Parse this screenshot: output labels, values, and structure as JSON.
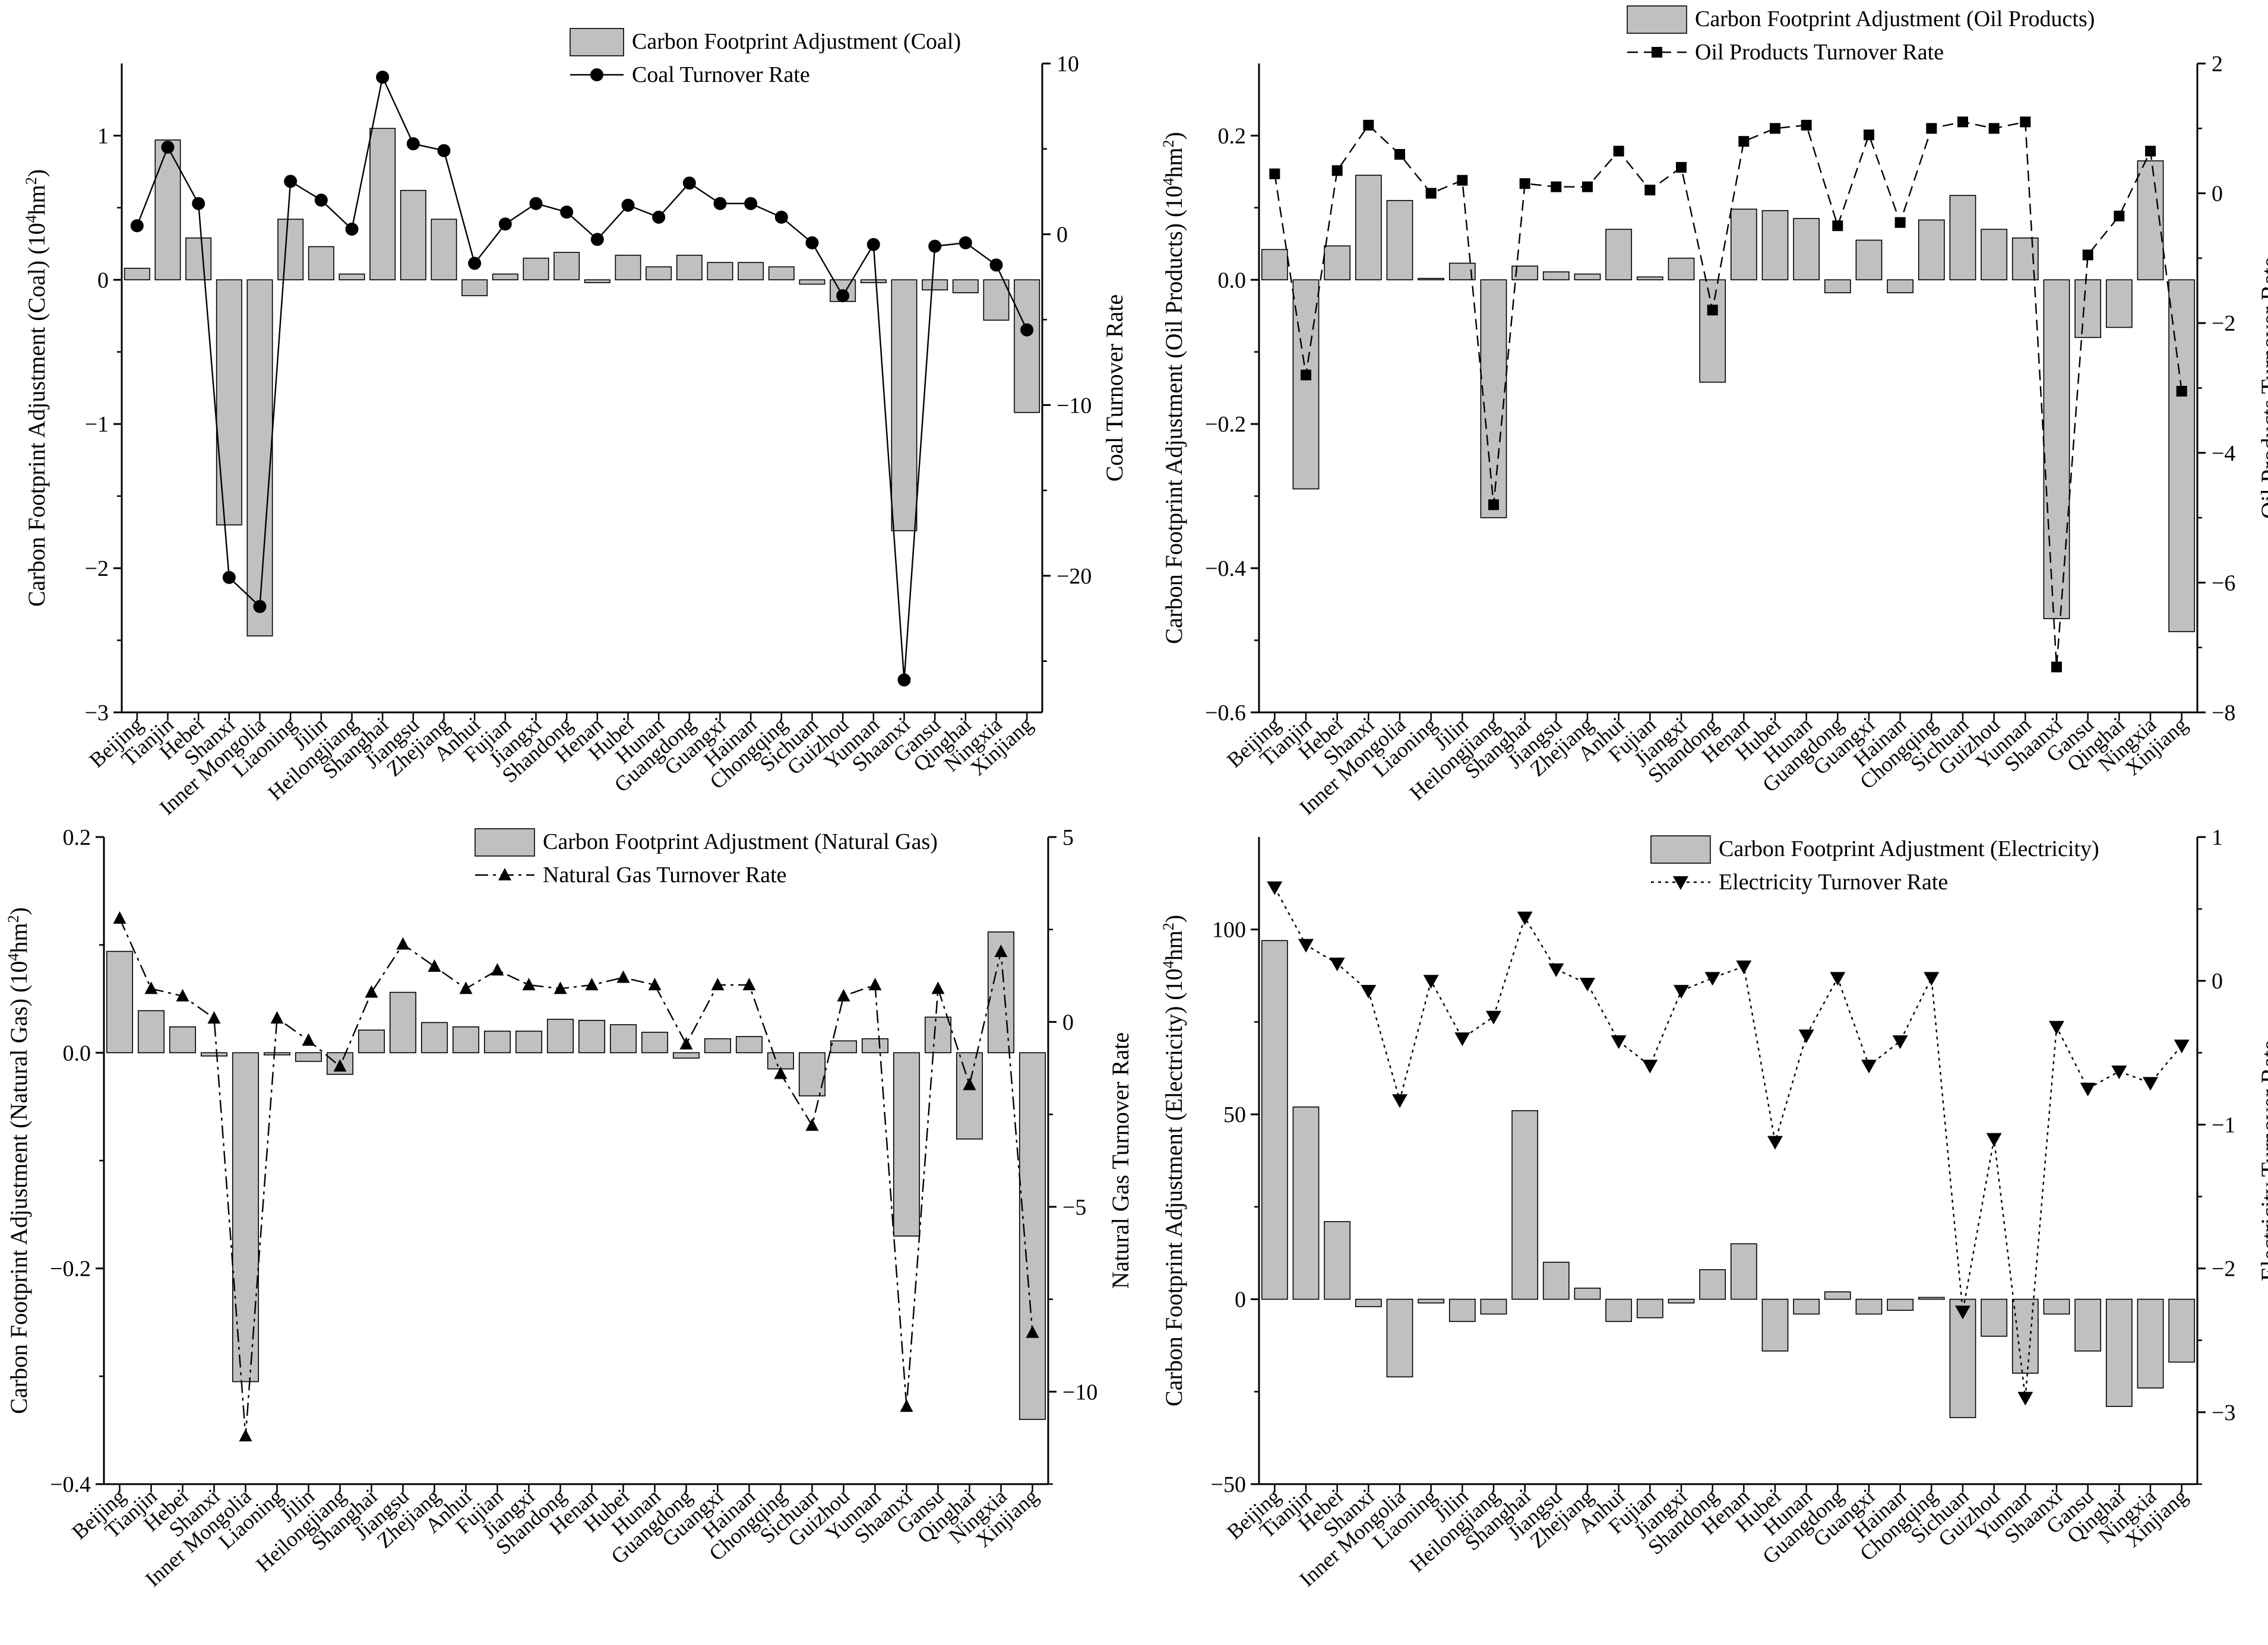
{
  "chart_data": [
    {
      "type": "bar+line",
      "id": "coal",
      "categories": [
        "Beijing",
        "Tianjin",
        "Hebei",
        "Shanxi",
        "Inner Mongolia",
        "Liaoning",
        "Jilin",
        "Heilongjiang",
        "Shanghai",
        "Jiangsu",
        "Zhejiang",
        "Anhui",
        "Fujian",
        "Jiangxi",
        "Shandong",
        "Henan",
        "Hubei",
        "Hunan",
        "Guangdong",
        "Guangxi",
        "Hainan",
        "Chongqing",
        "Sichuan",
        "Guizhou",
        "Yunnan",
        "Shaanxi",
        "Gansu",
        "Qinghai",
        "Ningxia",
        "Xinjiang"
      ],
      "category_labels": [
        "Beijing",
        "Tianjin",
        "Hebei",
        "Shanxi",
        "Inner Mongolia",
        "Liaoning",
        "Jilin",
        "Heilongjiang",
        "Shanghai",
        "Jiangsu",
        "Zhejiang",
        "Anhui",
        "Fujian",
        "Jiangxi",
        "Shandong",
        "Henan",
        "Hubei",
        "Hunan",
        "Guangdong",
        "Guangxi",
        "Hainan",
        "Chongqing",
        "Sichuan",
        "Guizhou",
        "Yunnan",
        "Shaanxi",
        "Gansu",
        "Qinghai",
        "Ningxia",
        "Xinjiang"
      ],
      "series": [
        {
          "name": "Carbon Footprint Adjustment (Coal)",
          "kind": "bar",
          "axis": "left",
          "values": [
            0.08,
            0.97,
            0.29,
            -1.7,
            -2.47,
            0.42,
            0.23,
            0.04,
            1.05,
            0.62,
            0.42,
            -0.11,
            0.04,
            0.15,
            0.19,
            -0.02,
            0.17,
            0.09,
            0.17,
            0.12,
            0.12,
            0.09,
            -0.03,
            -0.15,
            -0.02,
            -1.74,
            -0.07,
            -0.09,
            -0.28,
            -0.92
          ]
        },
        {
          "name": "Coal Turnover Rate",
          "kind": "line",
          "axis": "right",
          "marker": "circle",
          "dash": "solid",
          "values": [
            0.5,
            5.1,
            1.8,
            -20.1,
            -21.8,
            3.1,
            2.0,
            0.3,
            9.2,
            5.3,
            4.9,
            -1.7,
            0.6,
            1.8,
            1.3,
            -0.3,
            1.7,
            1.0,
            3.0,
            1.8,
            1.8,
            1.0,
            -0.5,
            -3.6,
            -0.6,
            -26.1,
            -0.7,
            -0.5,
            -1.8,
            -5.6
          ]
        }
      ],
      "ylabel_left_parts": [
        "Carbon Footprint Adjustment (Coal) (10",
        "4",
        "hm",
        "2",
        ")"
      ],
      "ylabel_right": "Coal Turnover Rate",
      "ylim_left": [
        -3,
        1.5
      ],
      "yticks_left": [
        -3,
        -2,
        -1,
        0,
        1
      ],
      "ylim_right": [
        -28,
        10
      ],
      "yticks_right": [
        -20,
        -10,
        0,
        10
      ],
      "legend_position": "top-center",
      "legend": [
        "Carbon Footprint Adjustment (Coal)",
        "Coal Turnover Rate"
      ]
    },
    {
      "type": "bar+line",
      "id": "oil",
      "categories": [
        "Beijing",
        "Tianjin",
        "Hebei",
        "Shanxi",
        "Inner Mongolia",
        "Liaoning",
        "Jilin",
        "Heilongjiang",
        "Shanghai",
        "Jiangsu",
        "Zhejiang",
        "Anhui",
        "Fujian",
        "Jiangxi",
        "Shandong",
        "Henan",
        "Hubei",
        "Hunan",
        "Guangdong",
        "Guangxi",
        "Hainan",
        "Chongqing",
        "Sichuan",
        "Guizhou",
        "Yunnan",
        "Shaanxi",
        "Gansu",
        "Qinghai",
        "Ningxia",
        "Xinjiang"
      ],
      "category_labels": [
        "Beijing",
        "Tianjin",
        "Hebei",
        "Shanxi",
        "Inner Mongolia",
        "Liaoning",
        "Jilin",
        "Heilongjiang",
        "Shanghai",
        "Jiangsu",
        "Zhejiang",
        "Anhui",
        "Fujian",
        "Jiangxi",
        "Shandong",
        "Henan",
        "Hubei",
        "Hunan",
        "Guangdong",
        "Guangxi",
        "Hainan",
        "Chongqing",
        "Sichuan",
        "Guizhou",
        "Yunnan",
        "Shaanxi",
        "Gansu",
        "Qinghai",
        "Ningxia",
        "Xinjiang"
      ],
      "series": [
        {
          "name": "Carbon Footprint Adjustment (Oil Products)",
          "kind": "bar",
          "axis": "left",
          "values": [
            0.042,
            -0.29,
            0.047,
            0.145,
            0.11,
            0.002,
            0.023,
            -0.33,
            0.019,
            0.011,
            0.008,
            0.07,
            0.004,
            0.03,
            -0.142,
            0.098,
            0.096,
            0.085,
            -0.018,
            0.055,
            -0.018,
            0.083,
            0.117,
            0.07,
            0.058,
            -0.47,
            -0.08,
            -0.066,
            0.165,
            -0.488
          ]
        },
        {
          "name": "Oil Products Turnover Rate",
          "kind": "line",
          "axis": "right",
          "marker": "square",
          "dash": "dashed",
          "values": [
            0.3,
            -2.8,
            0.35,
            1.05,
            0.6,
            0.0,
            0.2,
            -4.8,
            0.15,
            0.1,
            0.1,
            0.65,
            0.05,
            0.4,
            -1.8,
            0.8,
            1.0,
            1.05,
            -0.5,
            0.9,
            -0.45,
            1.0,
            1.1,
            1.0,
            1.1,
            -7.3,
            -0.95,
            -0.35,
            0.65,
            -3.05
          ]
        }
      ],
      "ylabel_left_parts": [
        "Carbon Footprint Adjustment (Oil Products) (10",
        "4",
        "hm",
        "2",
        ")"
      ],
      "ylabel_right": "Oil Products Turnover Rate",
      "ylim_left": [
        -0.6,
        0.3
      ],
      "yticks_left": [
        -0.6,
        -0.4,
        -0.2,
        0.0,
        0.2
      ],
      "ylim_right": [
        -8,
        2
      ],
      "yticks_right": [
        -8,
        -6,
        -4,
        -2,
        0,
        2
      ],
      "legend_position": "top-center",
      "legend": [
        "Carbon Footprint Adjustment (Oil Products)",
        "Oil Products Turnover Rate"
      ]
    },
    {
      "type": "bar+line",
      "id": "gas",
      "categories": [
        "Beijing",
        "Tianjin",
        "Hebei",
        "Shanxi",
        "Inner Mongolia",
        "Liaoning",
        "Jilin",
        "Heilongjiang",
        "Shanghai",
        "Jiangsu",
        "Zhejiang",
        "Anhui",
        "Fujian",
        "Jiangxi",
        "Shandong",
        "Henan",
        "Hubei",
        "Hunan",
        "Guangdong",
        "Guangxi",
        "Hainan",
        "Chongqing",
        "Sichuan",
        "Guizhou",
        "Yunnan",
        "Shaanxi",
        "Gansu",
        "Qinghai",
        "Ningxia",
        "Xinjiang"
      ],
      "category_labels": [
        "Beijing",
        "Tianjin",
        "Hebei",
        "Shanxi",
        "Inner Mongolia",
        "Liaoning",
        "Jilin",
        "Heilongjiang",
        "Shanghai",
        "Jiangsu",
        "Zhejiang",
        "Anhui",
        "Fujian",
        "Jiangxi",
        "Shandong",
        "Henan",
        "Hubei",
        "Hunan",
        "Guangdong",
        "Guangxi",
        "Hainan",
        "Chongqing",
        "Sichuan",
        "Guizhou",
        "Yunnan",
        "Shaanxi",
        "Gansu",
        "Qinghai",
        "Ningxia",
        "Xinjiang"
      ],
      "series": [
        {
          "name": "Carbon Footprint Adjustment (Natural Gas)",
          "kind": "bar",
          "axis": "left",
          "values": [
            0.094,
            0.039,
            0.024,
            -0.003,
            -0.305,
            -0.002,
            -0.008,
            -0.02,
            0.021,
            0.056,
            0.028,
            0.024,
            0.02,
            0.02,
            0.031,
            0.03,
            0.026,
            0.019,
            -0.005,
            0.013,
            0.015,
            -0.015,
            -0.04,
            0.011,
            0.013,
            -0.17,
            0.033,
            -0.08,
            0.112,
            -0.34
          ]
        },
        {
          "name": "Natural Gas Turnover Rate",
          "kind": "line",
          "axis": "right",
          "marker": "triangle-up",
          "dash": "dashdot",
          "values": [
            2.8,
            0.9,
            0.7,
            0.1,
            -11.2,
            0.1,
            -0.5,
            -1.2,
            0.8,
            2.1,
            1.5,
            0.9,
            1.4,
            1.0,
            0.9,
            1.0,
            1.2,
            1.0,
            -0.6,
            1.0,
            1.0,
            -1.4,
            -2.8,
            0.7,
            1.0,
            -10.4,
            0.9,
            -1.7,
            1.9,
            -8.4
          ]
        }
      ],
      "ylabel_left_parts": [
        "Carbon Footprint Adjustment (Natural Gas) (10",
        "4",
        "hm",
        "2",
        ")"
      ],
      "ylabel_right": "Natural Gas Turnover Rate",
      "ylim_left": [
        -0.4,
        0.2
      ],
      "yticks_left": [
        -0.4,
        -0.2,
        0.0,
        0.2
      ],
      "ylim_right": [
        -12.5,
        5
      ],
      "yticks_right": [
        -10,
        -5,
        0,
        5
      ],
      "legend_position": "top-center",
      "legend": [
        "Carbon Footprint Adjustment (Natural Gas)",
        "Natural Gas Turnover Rate"
      ]
    },
    {
      "type": "bar+line",
      "id": "elec",
      "categories": [
        "Beijing",
        "Tianjin",
        "Hebei",
        "Shanxi",
        "Inner Mongolia",
        "Liaoning",
        "Jilin",
        "Heilongjiang",
        "Shanghai",
        "Jiangsu",
        "Zhejiang",
        "Anhui",
        "Fujian",
        "Jiangxi",
        "Shandong",
        "Henan",
        "Hubei",
        "Hunan",
        "Guangdong",
        "Guangxi",
        "Hainan",
        "Chongqing",
        "Sichuan",
        "Guizhou",
        "Yunnan",
        "Shaanxi",
        "Gansu",
        "Qinghai",
        "Ningxia",
        "Xinjiang"
      ],
      "category_labels": [
        "Beijing",
        "Tianjin",
        "Hebei",
        "Shanxi",
        "Inner Mongolia",
        "Liaoning",
        "Jilin",
        "Heilongjiang",
        "Shanghai",
        "Jiangsu",
        "Zhejiang",
        "Anhui",
        "Fujian",
        "Jiangxi",
        "Shandong",
        "Henan",
        "Hubei",
        "Hunan",
        "Guangdong",
        "Guangxi",
        "Hainan",
        "Chongqing",
        "Sichuan",
        "Guizhou",
        "Yunnan",
        "Shaanxi",
        "Gansu",
        "Qinghai",
        "Ningxia",
        "Xinjiang"
      ],
      "series": [
        {
          "name": "Carbon Footprint Adjustment (Electricity)",
          "kind": "bar",
          "axis": "left",
          "values": [
            97,
            52,
            21,
            -2,
            -21,
            -1,
            -6,
            -4,
            51,
            10,
            3,
            -6,
            -5,
            -1,
            8,
            15,
            -14,
            -4,
            2,
            -4,
            -3,
            0.5,
            -32,
            -10,
            -20,
            -4,
            -14,
            -29,
            -24,
            -17
          ]
        },
        {
          "name": "Electricity Turnover Rate",
          "kind": "line",
          "axis": "right",
          "marker": "triangle-down",
          "dash": "dotted",
          "values": [
            0.65,
            0.25,
            0.12,
            -0.07,
            -0.83,
            0.0,
            -0.4,
            -0.25,
            0.44,
            0.08,
            -0.02,
            -0.42,
            -0.59,
            -0.07,
            0.02,
            0.1,
            -1.12,
            -0.38,
            0.02,
            -0.59,
            -0.42,
            0.02,
            -2.3,
            -1.1,
            -2.9,
            -0.32,
            -0.75,
            -0.63,
            -0.71,
            -0.45
          ]
        }
      ],
      "ylabel_left_parts": [
        "Carbon Footprint Adjustment (Electricity) (10",
        "4",
        "hm",
        "2",
        ")"
      ],
      "ylabel_right": "Electricity Turnover Rate",
      "ylim_left": [
        -50,
        125
      ],
      "yticks_left": [
        -50,
        0,
        50,
        100
      ],
      "ylim_right": [
        -3.5,
        1
      ],
      "yticks_right": [
        -3,
        -2,
        -1,
        0,
        1
      ],
      "legend_position": "top-right",
      "legend": [
        "Carbon Footprint Adjustment (Electricity)",
        "Electricity Turnover Rate"
      ]
    }
  ]
}
